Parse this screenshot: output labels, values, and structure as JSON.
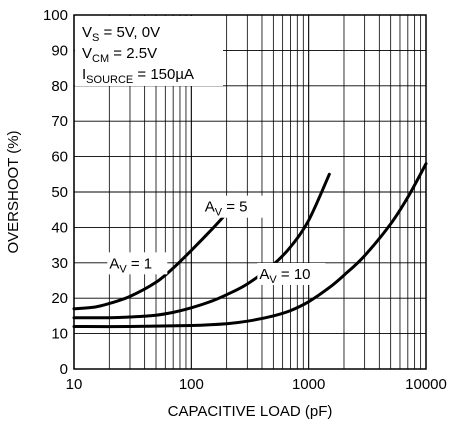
{
  "chart_data": {
    "type": "line",
    "xlabel": "CAPACITIVE LOAD (pF)",
    "ylabel": "OVERSHOOT (%)",
    "x_scale": "log",
    "xlim": [
      10,
      10000
    ],
    "ylim": [
      0,
      100
    ],
    "x_ticks": [
      10,
      100,
      1000,
      10000
    ],
    "x_tick_labels": [
      "10",
      "100",
      "1000",
      "10000"
    ],
    "y_ticks": [
      0,
      10,
      20,
      30,
      40,
      50,
      60,
      70,
      80,
      90,
      100
    ],
    "y_tick_labels": [
      "0",
      "10",
      "20",
      "30",
      "40",
      "50",
      "60",
      "70",
      "80",
      "90",
      "100"
    ],
    "grid": true,
    "conditions": [
      {
        "main": "V",
        "sub": "S",
        "rest": " = 5V, 0V"
      },
      {
        "main": "V",
        "sub": "CM",
        "rest": " = 2.5V"
      },
      {
        "main": "I",
        "sub": "SOURCE",
        "rest": " = 150µA"
      }
    ],
    "series": [
      {
        "label": {
          "main": "A",
          "sub": "V",
          "rest": " = 1"
        },
        "x": [
          10,
          15,
          20,
          30,
          50,
          70,
          100,
          150,
          200
        ],
        "y": [
          17,
          17.5,
          18.5,
          20.5,
          24.5,
          28.5,
          33.5,
          39.5,
          44
        ]
      },
      {
        "label": {
          "main": "A",
          "sub": "V",
          "rest": " = 5"
        },
        "x": [
          10,
          20,
          30,
          50,
          70,
          100,
          150,
          200,
          300,
          500,
          700,
          1000,
          1500
        ],
        "y": [
          14.5,
          14.5,
          14.7,
          15.2,
          16,
          17.3,
          19.2,
          21,
          24,
          29.5,
          34.5,
          42,
          55
        ]
      },
      {
        "label": {
          "main": "A",
          "sub": "V",
          "rest": " = 10"
        },
        "x": [
          10,
          30,
          100,
          200,
          300,
          500,
          700,
          1000,
          1500,
          2000,
          3000,
          5000,
          7000,
          10000
        ],
        "y": [
          12,
          12,
          12.3,
          12.8,
          13.5,
          15,
          16.5,
          19,
          23,
          26.5,
          32,
          41,
          48.5,
          58
        ]
      }
    ]
  }
}
